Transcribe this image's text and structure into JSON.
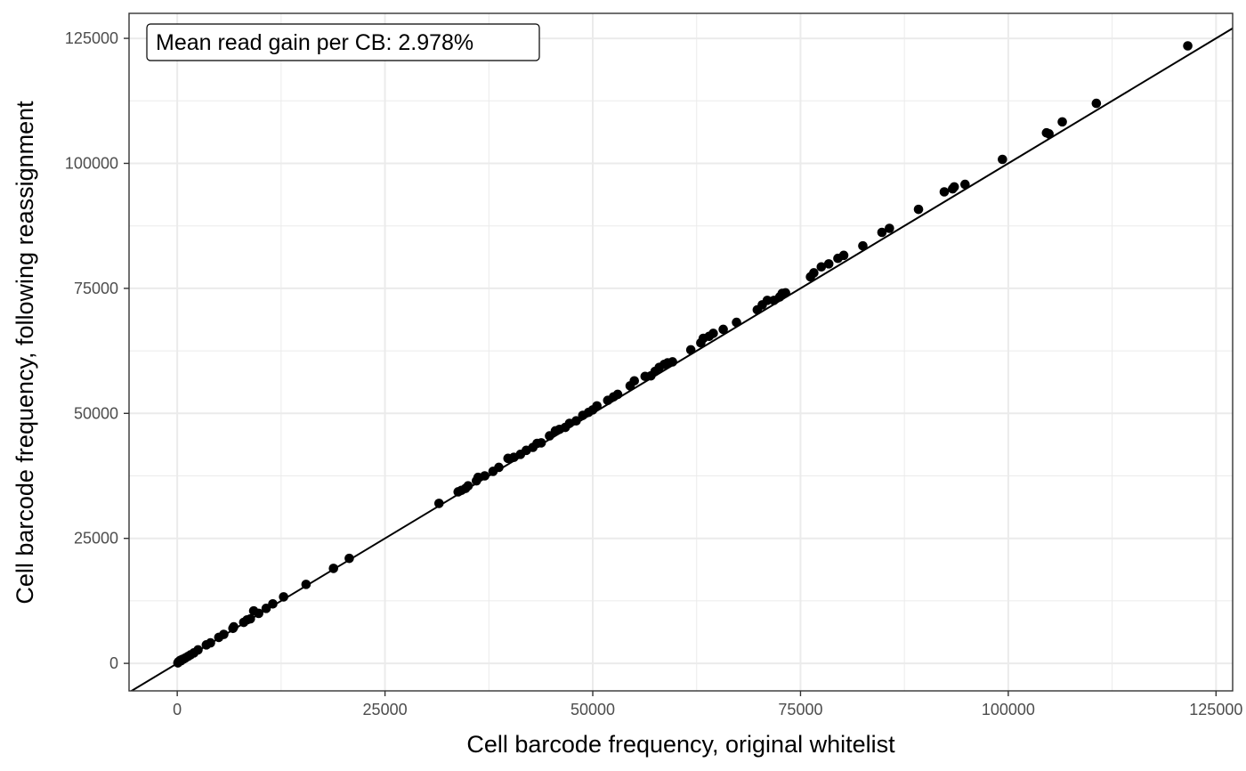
{
  "chart_data": {
    "type": "scatter",
    "title": "",
    "xlabel": "Cell barcode frequency, original whitelist",
    "ylabel": "Cell barcode frequency, following reassignment",
    "xlim": [
      -5800,
      127000
    ],
    "ylim": [
      -5500,
      130000
    ],
    "x_ticks": [
      0,
      25000,
      50000,
      75000,
      100000,
      125000
    ],
    "y_ticks": [
      0,
      25000,
      50000,
      75000,
      100000,
      125000
    ],
    "x_tick_labels": [
      "0",
      "25000",
      "50000",
      "75000",
      "100000",
      "125000"
    ],
    "y_tick_labels": [
      "0",
      "25000",
      "50000",
      "75000",
      "100000",
      "125000"
    ],
    "grid": true,
    "reference_line": {
      "type": "identity",
      "slope": 1,
      "intercept": 0
    },
    "annotation": "Mean read gain per CB: 2.978%",
    "colors": {
      "points": "#000000",
      "line": "#000000",
      "grid": "#ebebeb",
      "panel_border": "#333333"
    },
    "points": [
      [
        80,
        100
      ],
      [
        150,
        300
      ],
      [
        250,
        400
      ],
      [
        350,
        600
      ],
      [
        450,
        500
      ],
      [
        600,
        800
      ],
      [
        800,
        900
      ],
      [
        1000,
        1100
      ],
      [
        1300,
        1400
      ],
      [
        1600,
        1700
      ],
      [
        2000,
        2100
      ],
      [
        2500,
        2700
      ],
      [
        3500,
        3700
      ],
      [
        4000,
        4100
      ],
      [
        5000,
        5200
      ],
      [
        5600,
        5800
      ],
      [
        6700,
        7000
      ],
      [
        6800,
        7300
      ],
      [
        8000,
        8200
      ],
      [
        8400,
        8700
      ],
      [
        8800,
        8900
      ],
      [
        9200,
        10500
      ],
      [
        9800,
        10000
      ],
      [
        10700,
        11000
      ],
      [
        11500,
        11900
      ],
      [
        12800,
        13300
      ],
      [
        15500,
        15800
      ],
      [
        18800,
        19000
      ],
      [
        20700,
        21000
      ],
      [
        31500,
        32000
      ],
      [
        33800,
        34300
      ],
      [
        34200,
        34600
      ],
      [
        34700,
        35000
      ],
      [
        35000,
        35500
      ],
      [
        36000,
        36500
      ],
      [
        36200,
        37200
      ],
      [
        37000,
        37500
      ],
      [
        38000,
        38400
      ],
      [
        38700,
        39200
      ],
      [
        39800,
        41000
      ],
      [
        40500,
        41200
      ],
      [
        41300,
        41800
      ],
      [
        42000,
        42600
      ],
      [
        42800,
        43200
      ],
      [
        43300,
        44000
      ],
      [
        43800,
        44100
      ],
      [
        44800,
        45500
      ],
      [
        45500,
        46500
      ],
      [
        46000,
        46800
      ],
      [
        46700,
        47200
      ],
      [
        47200,
        48000
      ],
      [
        48000,
        48500
      ],
      [
        48800,
        49600
      ],
      [
        49500,
        50200
      ],
      [
        50000,
        50700
      ],
      [
        50500,
        51500
      ],
      [
        51800,
        52600
      ],
      [
        52500,
        53300
      ],
      [
        53000,
        53800
      ],
      [
        54500,
        55500
      ],
      [
        55000,
        56500
      ],
      [
        56300,
        57400
      ],
      [
        57000,
        57500
      ],
      [
        57500,
        58400
      ],
      [
        58000,
        59200
      ],
      [
        58600,
        59800
      ],
      [
        59000,
        60100
      ],
      [
        59600,
        60300
      ],
      [
        61800,
        62700
      ],
      [
        63000,
        64100
      ],
      [
        63300,
        65000
      ],
      [
        64000,
        65400
      ],
      [
        64500,
        66000
      ],
      [
        65700,
        66800
      ],
      [
        67300,
        68200
      ],
      [
        69800,
        70700
      ],
      [
        70400,
        71700
      ],
      [
        71000,
        72600
      ],
      [
        71800,
        72600
      ],
      [
        72500,
        73300
      ],
      [
        72800,
        74000
      ],
      [
        73200,
        74100
      ],
      [
        76200,
        77300
      ],
      [
        76600,
        78100
      ],
      [
        77500,
        79300
      ],
      [
        78400,
        79900
      ],
      [
        79500,
        81000
      ],
      [
        80200,
        81600
      ],
      [
        82500,
        83500
      ],
      [
        84800,
        86200
      ],
      [
        85700,
        87000
      ],
      [
        89200,
        90800
      ],
      [
        92300,
        94300
      ],
      [
        93300,
        94900
      ],
      [
        93500,
        95300
      ],
      [
        94800,
        95800
      ],
      [
        99300,
        100800
      ],
      [
        104600,
        106100
      ],
      [
        104900,
        105900
      ],
      [
        106500,
        108300
      ],
      [
        110600,
        112000
      ],
      [
        121600,
        123500
      ]
    ]
  }
}
